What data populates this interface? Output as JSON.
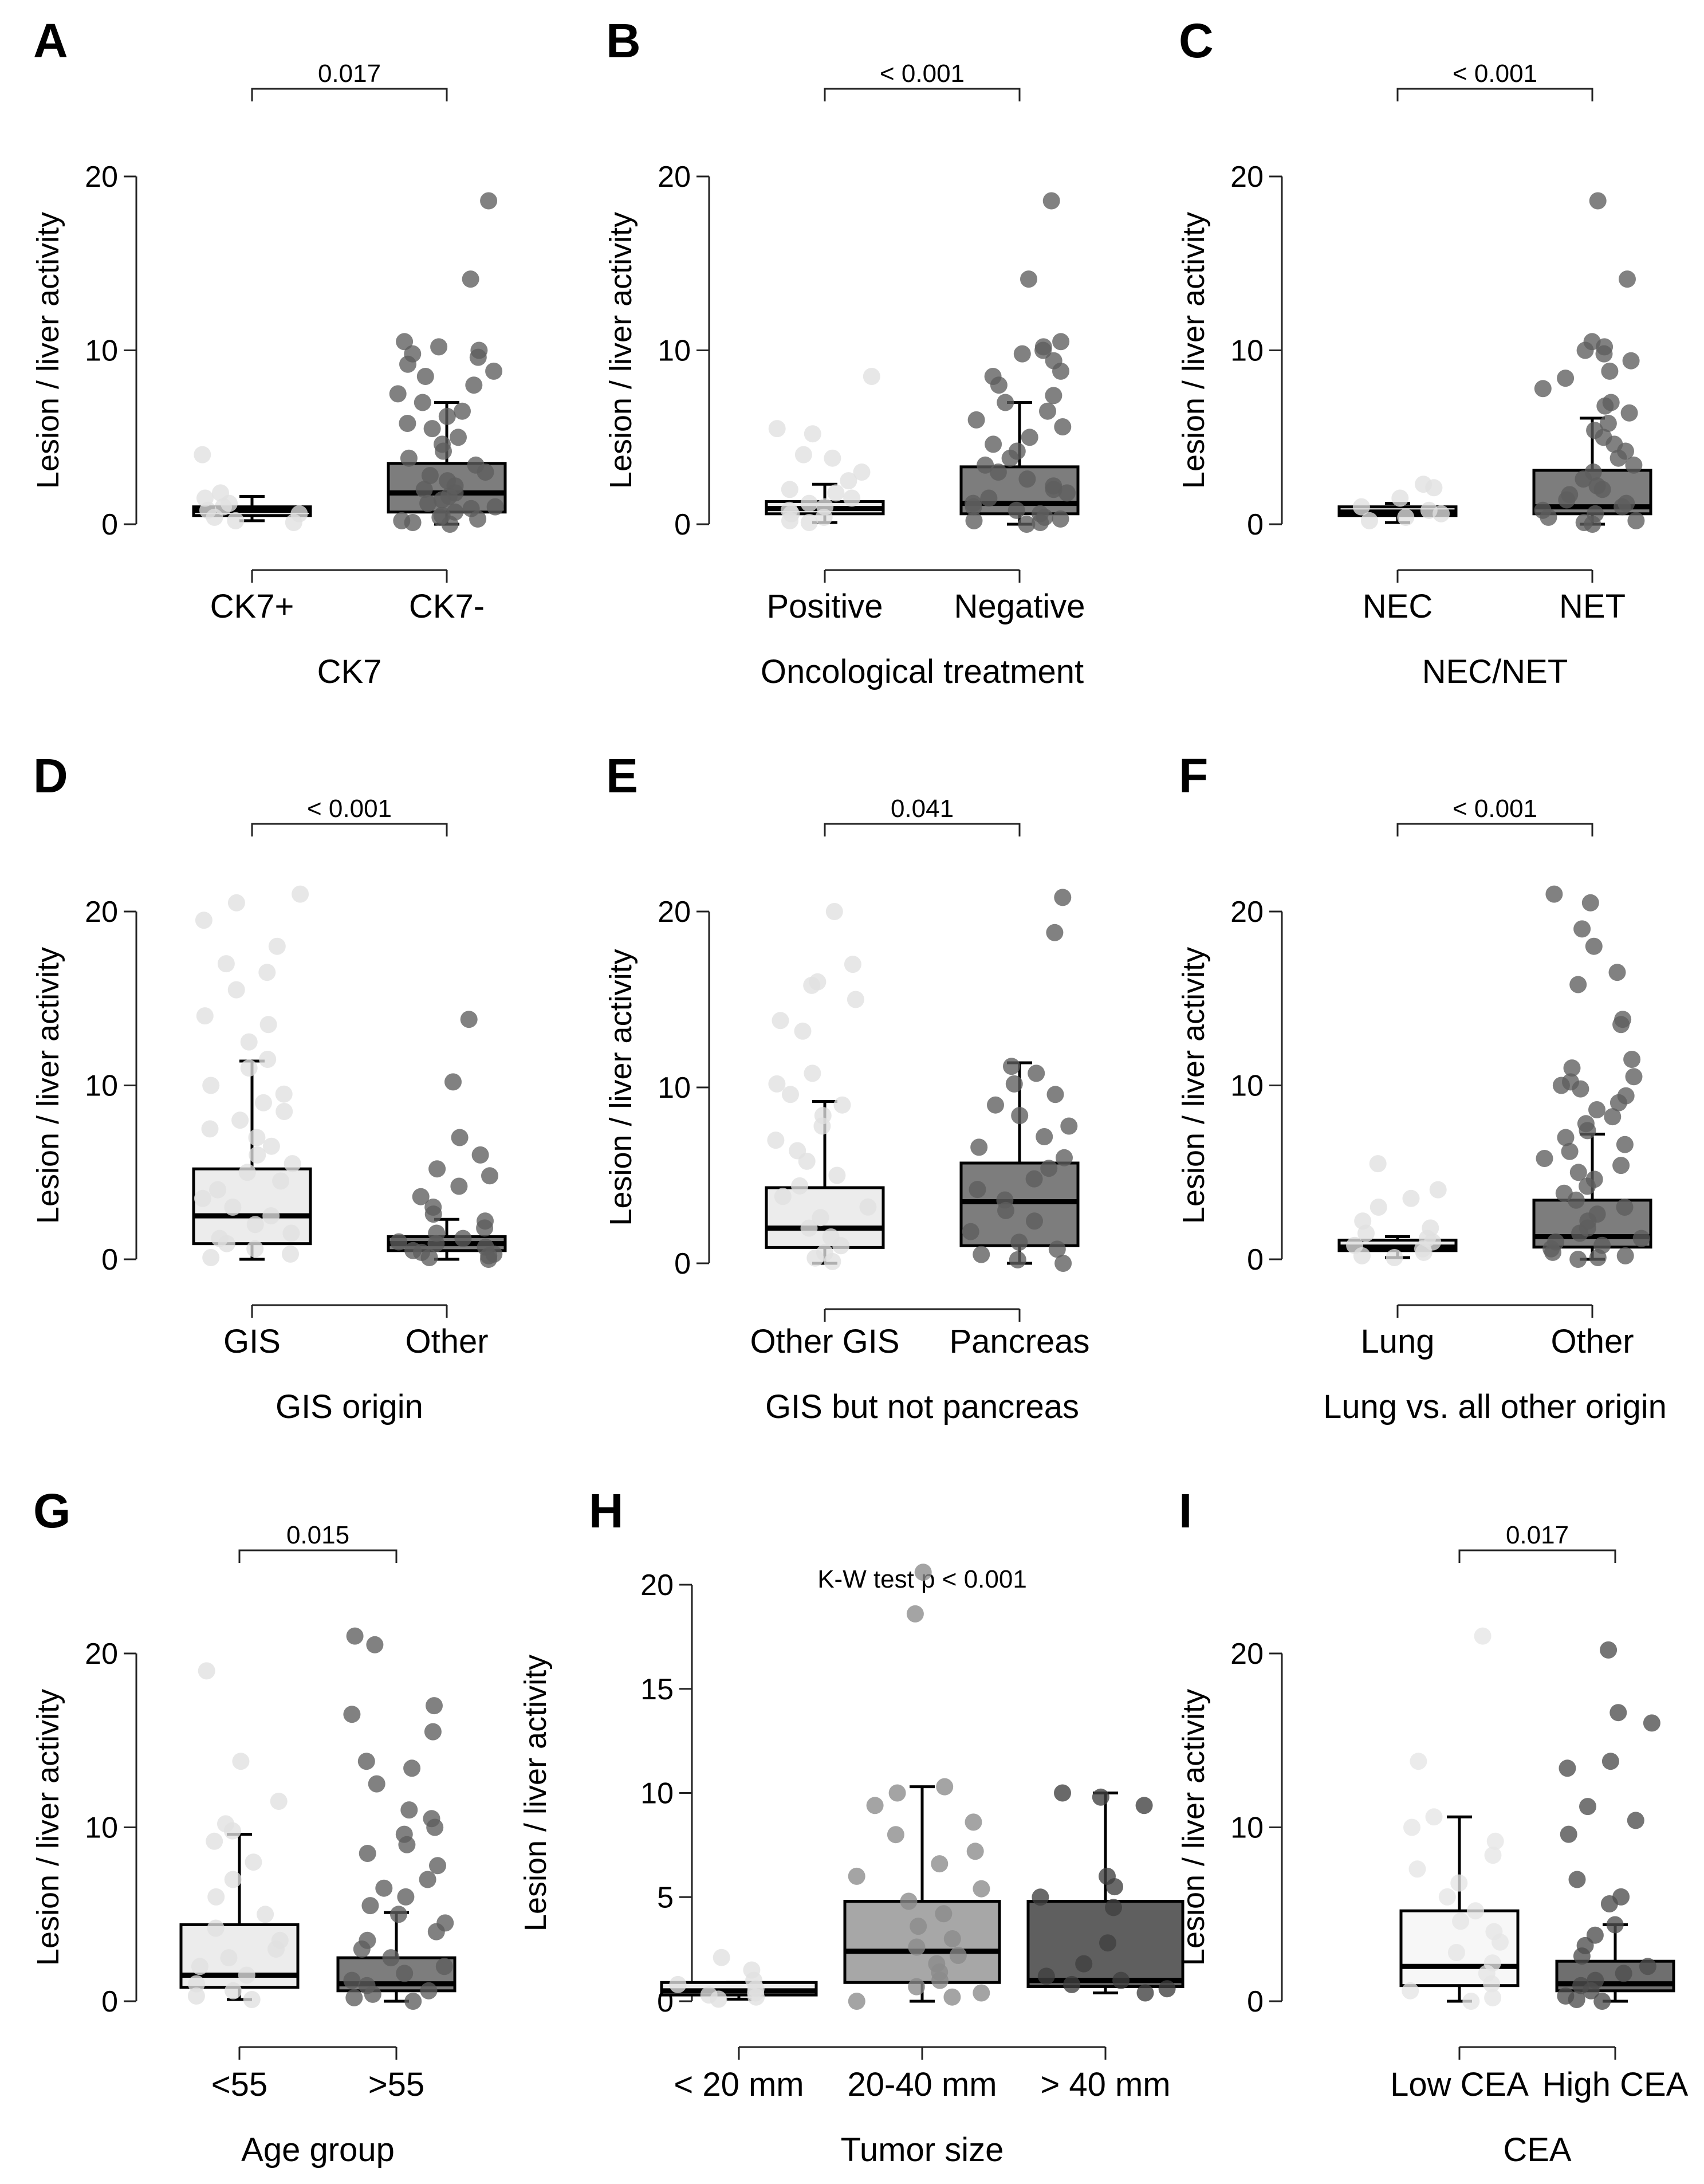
{
  "chart_data": [
    {
      "panel": "A",
      "type": "box",
      "categories": [
        "CK7+",
        "CK7-"
      ],
      "xlabel": "CK7",
      "ylabel": "Lesion  / liver activity",
      "p_value": "0.017",
      "test_note": "",
      "ylim": [
        0,
        20
      ],
      "yticks": [
        0,
        10,
        20
      ],
      "fills": [
        "#ececec",
        "#7d7d7d"
      ],
      "point_colors": [
        "#e0e0e0",
        "#5e5e5e"
      ],
      "boxes": [
        {
          "q1": 0.5,
          "median": 0.8,
          "q3": 1.0,
          "whisk_lo": 0.2,
          "whisk_hi": 1.6
        },
        {
          "q1": 0.7,
          "median": 1.8,
          "q3": 3.5,
          "whisk_lo": 0.0,
          "whisk_hi": 7.0
        }
      ],
      "points": [
        [
          4.0,
          1.8,
          1.5,
          1.2,
          1.0,
          0.8,
          0.6,
          0.4,
          0.2,
          0.1
        ],
        [
          18.6,
          14.1,
          10.5,
          10.2,
          10.0,
          9.8,
          9.6,
          9.2,
          8.8,
          8.5,
          8.0,
          7.5,
          7.0,
          6.5,
          6.2,
          5.8,
          5.5,
          5.0,
          4.6,
          4.2,
          3.8,
          3.4,
          3.0,
          2.8,
          2.5,
          2.2,
          2.0,
          1.8,
          1.6,
          1.4,
          1.2,
          1.0,
          0.9,
          0.7,
          0.5,
          0.4,
          0.3,
          0.2,
          0.1,
          0.0
        ]
      ]
    },
    {
      "panel": "B",
      "type": "box",
      "categories": [
        "Positive",
        "Negative"
      ],
      "xlabel": "Oncological treatment",
      "ylabel": "Lesion / liver activity",
      "p_value": "< 0.001",
      "test_note": "",
      "ylim": [
        0,
        20
      ],
      "yticks": [
        0,
        10,
        20
      ],
      "fills": [
        "#ececec",
        "#7d7d7d"
      ],
      "point_colors": [
        "#e0e0e0",
        "#5e5e5e"
      ],
      "boxes": [
        {
          "q1": 0.6,
          "median": 0.9,
          "q3": 1.3,
          "whisk_lo": 0.1,
          "whisk_hi": 2.3
        },
        {
          "q1": 0.6,
          "median": 1.2,
          "q3": 3.3,
          "whisk_lo": 0.0,
          "whisk_hi": 7.0
        }
      ],
      "points": [
        [
          8.5,
          5.5,
          5.2,
          4.0,
          3.8,
          3.0,
          2.5,
          2.0,
          1.8,
          1.5,
          1.2,
          1.0,
          0.8,
          0.6,
          0.4,
          0.2,
          0.1
        ],
        [
          18.6,
          14.1,
          10.5,
          10.2,
          10.0,
          9.8,
          9.4,
          8.8,
          8.5,
          8.0,
          7.4,
          7.0,
          6.5,
          6.0,
          5.6,
          5.0,
          4.6,
          4.2,
          3.8,
          3.4,
          3.0,
          2.6,
          2.2,
          2.0,
          1.8,
          1.5,
          1.2,
          1.0,
          0.8,
          0.6,
          0.4,
          0.3,
          0.2,
          0.1,
          0.0
        ]
      ]
    },
    {
      "panel": "C",
      "type": "box",
      "categories": [
        "NEC",
        "NET"
      ],
      "xlabel": "NEC/NET",
      "ylabel": "Lesion / liver activity",
      "p_value": "< 0.001",
      "test_note": "",
      "ylim": [
        0,
        20
      ],
      "yticks": [
        0,
        10,
        20
      ],
      "fills": [
        "#ececec",
        "#7d7d7d"
      ],
      "point_colors": [
        "#e0e0e0",
        "#5e5e5e"
      ],
      "boxes": [
        {
          "q1": 0.5,
          "median": 0.7,
          "q3": 1.0,
          "whisk_lo": 0.1,
          "whisk_hi": 1.2
        },
        {
          "q1": 0.6,
          "median": 1.0,
          "q3": 3.1,
          "whisk_lo": 0.0,
          "whisk_hi": 6.1
        }
      ],
      "points": [
        [
          2.3,
          2.1,
          1.5,
          1.0,
          0.8,
          0.6,
          0.4,
          0.2
        ],
        [
          18.6,
          14.1,
          10.5,
          10.2,
          10.0,
          9.8,
          9.4,
          8.8,
          8.4,
          7.8,
          7.0,
          6.8,
          6.4,
          5.8,
          5.4,
          5.0,
          4.6,
          4.2,
          3.8,
          3.4,
          3.0,
          2.6,
          2.2,
          2.0,
          1.7,
          1.4,
          1.2,
          1.0,
          0.8,
          0.6,
          0.4,
          0.2,
          0.1,
          0.0
        ]
      ]
    },
    {
      "panel": "D",
      "type": "box",
      "categories": [
        "GIS",
        "Other"
      ],
      "xlabel": "GIS origin",
      "ylabel": "Lesion / liver activity",
      "p_value": "< 0.001",
      "test_note": "",
      "ylim": [
        0,
        20
      ],
      "yticks": [
        0,
        10,
        20
      ],
      "fills": [
        "#ececec",
        "#7d7d7d"
      ],
      "point_colors": [
        "#e0e0e0",
        "#5e5e5e"
      ],
      "boxes": [
        {
          "q1": 0.9,
          "median": 2.5,
          "q3": 5.2,
          "whisk_lo": 0.0,
          "whisk_hi": 11.4
        },
        {
          "q1": 0.5,
          "median": 0.9,
          "q3": 1.3,
          "whisk_lo": 0.0,
          "whisk_hi": 2.3
        }
      ],
      "points": [
        [
          21.0,
          20.5,
          19.5,
          18.0,
          17.0,
          16.5,
          15.5,
          14.0,
          13.5,
          12.5,
          11.5,
          11.0,
          10.0,
          9.5,
          9.0,
          8.5,
          8.0,
          7.5,
          7.0,
          6.5,
          6.0,
          5.5,
          5.0,
          4.5,
          4.0,
          3.5,
          3.0,
          2.5,
          2.0,
          1.5,
          1.2,
          0.9,
          0.6,
          0.3,
          0.1
        ],
        [
          13.8,
          10.2,
          7.0,
          6.0,
          5.2,
          4.8,
          4.2,
          3.6,
          3.0,
          2.6,
          2.2,
          1.8,
          1.5,
          1.2,
          1.0,
          0.9,
          0.7,
          0.5,
          0.4,
          0.3,
          0.2,
          0.1,
          0.0
        ]
      ]
    },
    {
      "panel": "E",
      "type": "box",
      "categories": [
        "Other GIS",
        "Pancreas"
      ],
      "xlabel": "GIS but not pancreas",
      "ylabel": "Lesion / liver activity",
      "p_value": "0.041",
      "test_note": "",
      "ylim": [
        0,
        20
      ],
      "yticks": [
        0,
        10,
        20
      ],
      "fills": [
        "#ececec",
        "#7d7d7d"
      ],
      "point_colors": [
        "#e0e0e0",
        "#5e5e5e"
      ],
      "boxes": [
        {
          "q1": 0.9,
          "median": 2.0,
          "q3": 4.3,
          "whisk_lo": 0.0,
          "whisk_hi": 9.2
        },
        {
          "q1": 1.0,
          "median": 3.5,
          "q3": 5.7,
          "whisk_lo": 0.0,
          "whisk_hi": 11.4
        }
      ],
      "points": [
        [
          20.0,
          17.0,
          16.0,
          15.8,
          15.0,
          13.8,
          13.2,
          10.8,
          10.2,
          9.6,
          9.0,
          8.4,
          7.8,
          7.0,
          6.4,
          5.8,
          5.0,
          4.4,
          3.8,
          3.2,
          2.6,
          2.0,
          1.5,
          1.0,
          0.6,
          0.3,
          0.1
        ],
        [
          20.8,
          18.8,
          11.2,
          10.8,
          10.2,
          9.6,
          9.0,
          8.4,
          7.8,
          7.2,
          6.6,
          6.0,
          5.4,
          4.8,
          4.2,
          3.6,
          3.0,
          2.4,
          1.8,
          1.2,
          0.8,
          0.5,
          0.2,
          0.0
        ]
      ]
    },
    {
      "panel": "F",
      "type": "box",
      "categories": [
        "Lung",
        "Other"
      ],
      "xlabel": "Lung vs. all other origin",
      "ylabel": "Lesion / liver activity",
      "p_value": "< 0.001",
      "test_note": "",
      "ylim": [
        0,
        20
      ],
      "yticks": [
        0,
        10,
        20
      ],
      "fills": [
        "#ececec",
        "#7d7d7d"
      ],
      "point_colors": [
        "#e0e0e0",
        "#5e5e5e"
      ],
      "boxes": [
        {
          "q1": 0.5,
          "median": 0.7,
          "q3": 1.1,
          "whisk_lo": 0.1,
          "whisk_hi": 1.3
        },
        {
          "q1": 0.7,
          "median": 1.3,
          "q3": 3.4,
          "whisk_lo": 0.0,
          "whisk_hi": 7.2
        }
      ],
      "points": [
        [
          5.5,
          4.0,
          3.5,
          3.0,
          2.2,
          1.8,
          1.5,
          1.2,
          1.0,
          0.8,
          0.6,
          0.4,
          0.2,
          0.1
        ],
        [
          21.0,
          20.5,
          19.0,
          18.0,
          16.5,
          15.8,
          13.8,
          13.5,
          11.5,
          11.0,
          10.5,
          10.2,
          10.0,
          9.8,
          9.4,
          9.0,
          8.6,
          8.2,
          7.8,
          7.4,
          7.0,
          6.6,
          6.2,
          5.8,
          5.4,
          5.0,
          4.6,
          4.2,
          3.8,
          3.4,
          3.0,
          2.6,
          2.2,
          1.8,
          1.5,
          1.2,
          1.0,
          0.8,
          0.6,
          0.4,
          0.2,
          0.1,
          0.0
        ]
      ]
    },
    {
      "panel": "G",
      "type": "box",
      "categories": [
        "<55",
        ">55"
      ],
      "xlabel": "Age group",
      "ylabel": "Lesion / liver activity",
      "p_value": "0.015",
      "test_note": "",
      "ylim": [
        0,
        20
      ],
      "yticks": [
        0,
        10,
        20
      ],
      "fills": [
        "#ececec",
        "#7d7d7d"
      ],
      "point_colors": [
        "#e0e0e0",
        "#5e5e5e"
      ],
      "boxes": [
        {
          "q1": 0.8,
          "median": 1.5,
          "q3": 4.4,
          "whisk_lo": 0.1,
          "whisk_hi": 9.6
        },
        {
          "q1": 0.6,
          "median": 1.0,
          "q3": 2.5,
          "whisk_lo": 0.0,
          "whisk_hi": 5.1
        }
      ],
      "points": [
        [
          19.0,
          13.8,
          11.5,
          10.2,
          9.8,
          9.2,
          8.0,
          7.0,
          6.0,
          5.0,
          4.2,
          3.5,
          3.0,
          2.5,
          2.0,
          1.5,
          1.0,
          0.6,
          0.3,
          0.1
        ],
        [
          21.0,
          20.5,
          17.0,
          16.5,
          15.5,
          13.8,
          13.4,
          12.5,
          11.0,
          10.5,
          10.0,
          9.6,
          9.0,
          8.5,
          7.8,
          7.0,
          6.5,
          6.0,
          5.5,
          5.0,
          4.5,
          4.0,
          3.5,
          3.0,
          2.5,
          2.0,
          1.6,
          1.2,
          0.9,
          0.6,
          0.4,
          0.2,
          0.0
        ]
      ]
    },
    {
      "panel": "H",
      "type": "box",
      "categories": [
        "< 20 mm",
        "20-40 mm",
        "> 40 mm"
      ],
      "xlabel": "Tumor size",
      "ylabel": "Lesion / liver activity",
      "p_value": "",
      "test_note": "K-W test p < 0.001",
      "ylim": [
        0,
        20
      ],
      "yticks": [
        0,
        5,
        10,
        15,
        20
      ],
      "fills": [
        "#ececec",
        "#a7a7a7",
        "#5f5f5f"
      ],
      "point_colors": [
        "#e0e0e0",
        "#8a8a8a",
        "#3f3f3f"
      ],
      "boxes": [
        {
          "q1": 0.3,
          "median": 0.5,
          "q3": 0.9,
          "whisk_lo": 0.1,
          "whisk_hi": 0.9
        },
        {
          "q1": 0.9,
          "median": 2.4,
          "q3": 4.8,
          "whisk_lo": 0.0,
          "whisk_hi": 10.3
        },
        {
          "q1": 0.7,
          "median": 1.0,
          "q3": 4.8,
          "whisk_lo": 0.4,
          "whisk_hi": 10.0
        }
      ],
      "points": [
        [
          2.1,
          1.5,
          1.0,
          0.8,
          0.6,
          0.4,
          0.3,
          0.2,
          0.1
        ],
        [
          20.6,
          18.6,
          10.3,
          10.0,
          9.4,
          8.6,
          8.0,
          7.2,
          6.6,
          6.0,
          5.4,
          4.8,
          4.2,
          3.6,
          3.0,
          2.6,
          2.2,
          1.8,
          1.4,
          1.0,
          0.7,
          0.4,
          0.2,
          0.0
        ],
        [
          10.0,
          9.8,
          9.4,
          6.0,
          5.5,
          5.0,
          4.5,
          2.8,
          1.8,
          1.2,
          1.0,
          0.8,
          0.6,
          0.4
        ]
      ]
    },
    {
      "panel": "I",
      "type": "box",
      "categories": [
        "Low CEA",
        "High CEA"
      ],
      "xlabel": "CEA",
      "ylabel": "Lesion / liver activity",
      "p_value": "0.017",
      "test_note": "",
      "ylim": [
        0,
        20
      ],
      "yticks": [
        0,
        10,
        20
      ],
      "fills": [
        "#f7f7f7",
        "#6f6f6f"
      ],
      "point_colors": [
        "#e6e6e6",
        "#4e4e4e"
      ],
      "boxes": [
        {
          "q1": 0.9,
          "median": 2.0,
          "q3": 5.2,
          "whisk_lo": 0.0,
          "whisk_hi": 10.6
        },
        {
          "q1": 0.6,
          "median": 1.0,
          "q3": 2.3,
          "whisk_lo": 0.0,
          "whisk_hi": 4.4
        }
      ],
      "points": [
        [
          21.0,
          13.8,
          10.6,
          10.0,
          9.2,
          8.4,
          7.6,
          6.8,
          6.0,
          5.2,
          4.6,
          4.0,
          3.4,
          2.8,
          2.2,
          1.6,
          1.0,
          0.6,
          0.2,
          0.0
        ],
        [
          20.2,
          16.6,
          16.0,
          13.8,
          13.4,
          11.2,
          10.4,
          9.6,
          7.0,
          6.0,
          5.6,
          4.4,
          3.8,
          3.2,
          2.6,
          2.0,
          1.6,
          1.2,
          0.9,
          0.6,
          0.3,
          0.1,
          0.0
        ]
      ]
    }
  ]
}
